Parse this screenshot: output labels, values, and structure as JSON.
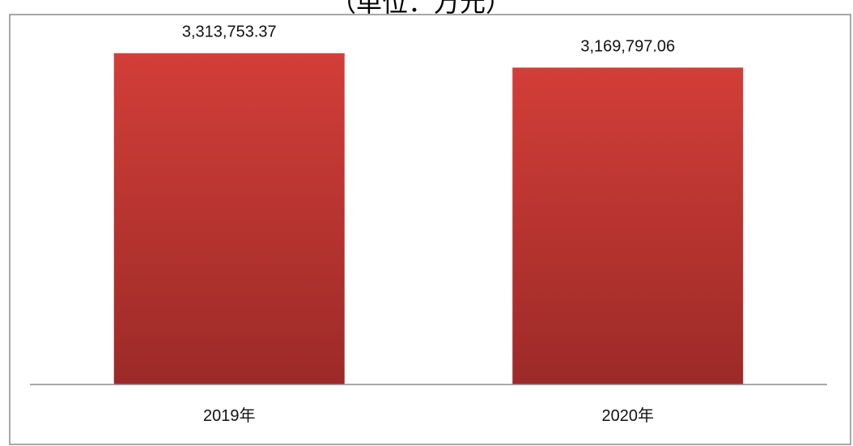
{
  "chart_data": {
    "type": "bar",
    "title": "（单位：万元）",
    "categories": [
      "2019年",
      "2020年"
    ],
    "values": [
      3313753.37,
      3169797.06
    ],
    "data_labels": [
      "3,313,753.37",
      "3,169,797.06"
    ],
    "xlabel": "",
    "ylabel": "",
    "ylim": [
      0,
      3700000
    ],
    "grid": false,
    "legend": "none",
    "colors": {
      "bar_top": "#d23e38",
      "bar_bottom": "#9c2a28",
      "frame": "#8c8c8c",
      "axis": "#8c8c8c"
    }
  }
}
